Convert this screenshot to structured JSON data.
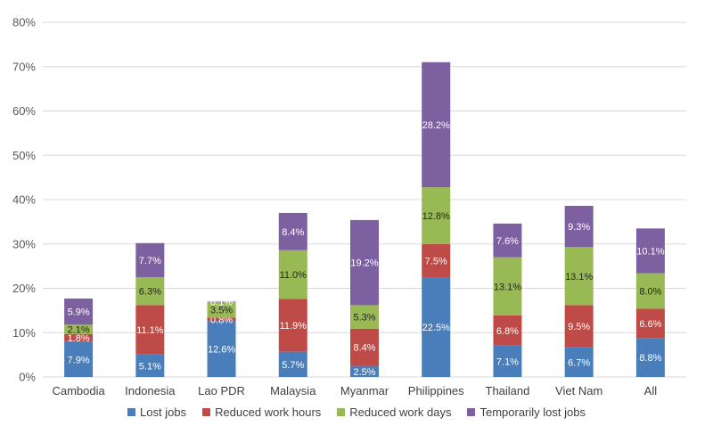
{
  "chart_data": {
    "type": "bar",
    "stacked": true,
    "categories": [
      "Cambodia",
      "Indonesia",
      "Lao PDR",
      "Malaysia",
      "Myanmar",
      "Philippines",
      "Thailand",
      "Viet Nam",
      "All"
    ],
    "series": [
      {
        "name": "Lost jobs",
        "color": "#4a7ebb",
        "values": [
          7.9,
          5.1,
          12.6,
          5.7,
          2.5,
          22.5,
          7.1,
          6.7,
          8.8
        ],
        "labels": [
          "7.9%",
          "5.1%",
          "12.6%",
          "5.7%",
          "2.5%",
          "22.5%",
          "7.1%",
          "6.7%",
          "8.8%"
        ]
      },
      {
        "name": "Reduced work hours",
        "color": "#be4b48",
        "values": [
          1.8,
          11.1,
          0.8,
          11.9,
          8.4,
          7.5,
          6.8,
          9.5,
          6.6
        ],
        "labels": [
          "1.8%",
          "11.1%",
          "0.8%",
          "11.9%",
          "8.4%",
          "7.5%",
          "6.8%",
          "9.5%",
          "6.6%"
        ]
      },
      {
        "name": "Reduced work days",
        "color": "#98b954",
        "values": [
          2.1,
          6.3,
          3.5,
          11.0,
          5.3,
          12.8,
          13.1,
          13.1,
          8.0
        ],
        "labels": [
          "2.1%",
          "6.3%",
          "3.5%",
          "11.0%",
          "5.3%",
          "12.8%",
          "13.1%",
          "13.1%",
          "8.0%"
        ]
      },
      {
        "name": "Temporarily lost jobs",
        "color": "#7d60a0",
        "values": [
          5.9,
          7.7,
          0.1,
          8.4,
          19.2,
          28.2,
          7.6,
          9.3,
          10.1
        ],
        "labels": [
          "5.9%",
          "7.7%",
          "0.1%",
          "8.4%",
          "19.2%",
          "28.2%",
          "7.6%",
          "9.3%",
          "10.1%"
        ]
      }
    ],
    "ylim": [
      0,
      80
    ],
    "yticks": [
      "0%",
      "10%",
      "20%",
      "30%",
      "40%",
      "50%",
      "60%",
      "70%",
      "80%"
    ],
    "grid": true,
    "legend_position": "bottom"
  }
}
